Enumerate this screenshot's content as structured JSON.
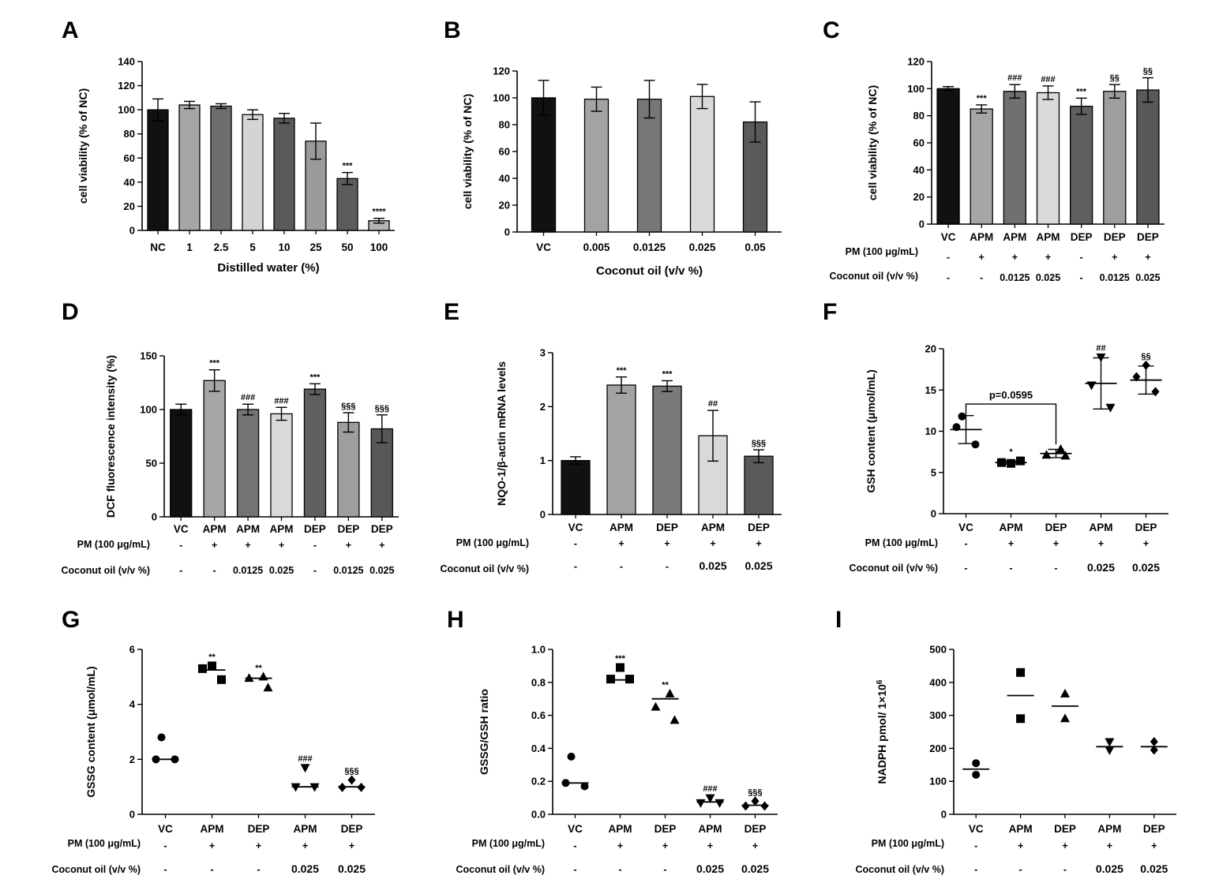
{
  "chart_data": [
    {
      "panel": "A",
      "type": "bar",
      "ylabel": "cell viability (% of NC)",
      "xlabel": "Distilled water (%)",
      "ylim": [
        0,
        140
      ],
      "yticks": [
        0,
        20,
        40,
        60,
        80,
        100,
        120,
        140
      ],
      "categories": [
        "NC",
        "1",
        "2.5",
        "5",
        "10",
        "25",
        "50",
        "100"
      ],
      "values": [
        100,
        104,
        103,
        96,
        93,
        74,
        43,
        8
      ],
      "errors": [
        9,
        3,
        2,
        4,
        4,
        15,
        5,
        2
      ],
      "colors": [
        "#111111",
        "#a6a6a6",
        "#6e6e6e",
        "#d4d4d4",
        "#5a5a5a",
        "#9a9a9a",
        "#5c5c5c",
        "#b5b5b5"
      ],
      "annotations": [
        "",
        "",
        "",
        "",
        "",
        "",
        "***",
        "****"
      ],
      "conditions": []
    },
    {
      "panel": "B",
      "type": "bar",
      "ylabel": "cell viability (% of NC)",
      "xlabel": "Coconut oil (v/v %)",
      "ylim": [
        0,
        120
      ],
      "yticks": [
        0,
        20,
        40,
        60,
        80,
        100,
        120
      ],
      "categories": [
        "VC",
        "0.005",
        "0.0125",
        "0.025",
        "0.05"
      ],
      "values": [
        100,
        99,
        99,
        101,
        82
      ],
      "errors": [
        13,
        9,
        14,
        9,
        15
      ],
      "colors": [
        "#111111",
        "#a3a3a3",
        "#777777",
        "#d9d9d9",
        "#5a5a5a"
      ],
      "annotations": [
        "",
        "",
        "",
        "",
        ""
      ],
      "conditions": []
    },
    {
      "panel": "C",
      "type": "bar",
      "ylabel": "cell viability (% of NC)",
      "xlabel": "",
      "ylim": [
        0,
        120
      ],
      "yticks": [
        0,
        20,
        40,
        60,
        80,
        100,
        120
      ],
      "categories": [
        "VC",
        "APM",
        "APM",
        "APM",
        "DEP",
        "DEP",
        "DEP"
      ],
      "values": [
        100,
        85,
        98,
        97,
        87,
        98,
        99
      ],
      "errors": [
        1.5,
        3,
        5,
        5,
        6,
        5,
        9
      ],
      "colors": [
        "#111111",
        "#a6a6a6",
        "#707070",
        "#d9d9d9",
        "#5f5f5f",
        "#9e9e9e",
        "#585858"
      ],
      "annotations": [
        "",
        "***",
        "###",
        "###",
        "***",
        "§§",
        "§§"
      ],
      "conditions": [
        {
          "label": "PM (100 μg/mL)",
          "values": [
            "-",
            "+",
            "+",
            "+",
            "-",
            "+",
            "+"
          ]
        },
        {
          "label": "Coconut oil (v/v %)",
          "values": [
            "-",
            "-",
            "0.0125",
            "0.025",
            "-",
            "0.0125",
            "0.025"
          ]
        }
      ]
    },
    {
      "panel": "D",
      "type": "bar",
      "ylabel": "DCF fluorescence intensity (%)",
      "xlabel": "",
      "ylim": [
        0,
        150
      ],
      "yticks": [
        0,
        50,
        100,
        150
      ],
      "categories": [
        "VC",
        "APM",
        "APM",
        "APM",
        "DEP",
        "DEP",
        "DEP"
      ],
      "values": [
        100,
        127,
        100,
        96,
        119,
        88,
        82
      ],
      "errors": [
        5,
        10,
        5,
        6,
        5,
        9,
        13
      ],
      "colors": [
        "#111111",
        "#a6a6a6",
        "#737373",
        "#d9d9d9",
        "#5f5f5f",
        "#9e9e9e",
        "#585858"
      ],
      "annotations": [
        "",
        "***",
        "###",
        "###",
        "***",
        "§§§",
        "§§§"
      ],
      "conditions": [
        {
          "label": "PM (100 μg/mL)",
          "values": [
            "-",
            "+",
            "+",
            "+",
            "-",
            "+",
            "+"
          ]
        },
        {
          "label": "Coconut oil (v/v %)",
          "values": [
            "-",
            "-",
            "0.0125",
            "0.025",
            "-",
            "0.0125",
            "0.025"
          ]
        }
      ]
    },
    {
      "panel": "E",
      "type": "bar",
      "ylabel": "NQO-1/β-actin mRNA levels",
      "xlabel": "",
      "ylim": [
        0,
        3
      ],
      "yticks": [
        0,
        1,
        2,
        3
      ],
      "categories": [
        "VC",
        "APM",
        "DEP",
        "APM",
        "DEP"
      ],
      "values": [
        1.0,
        2.4,
        2.38,
        1.46,
        1.08
      ],
      "errors": [
        0.07,
        0.15,
        0.1,
        0.47,
        0.12
      ],
      "colors": [
        "#111111",
        "#a3a3a3",
        "#7a7a7a",
        "#d9d9d9",
        "#5a5a5a"
      ],
      "annotations": [
        "",
        "***",
        "***",
        "##",
        "§§§"
      ],
      "conditions": [
        {
          "label": "PM (100 μg/mL)",
          "values": [
            "-",
            "+",
            "+",
            "+",
            "+"
          ]
        },
        {
          "label": "Coconut oil (v/v %)",
          "values": [
            "-",
            "-",
            "-",
            "0.025",
            "0.025"
          ]
        }
      ]
    },
    {
      "panel": "F",
      "type": "scatter",
      "ylabel": "GSH content (μmol/mL)",
      "xlabel": "",
      "ylim": [
        0,
        20
      ],
      "yticks": [
        0,
        5,
        10,
        15,
        20
      ],
      "categories": [
        "VC",
        "APM",
        "DEP",
        "APM",
        "DEP"
      ],
      "markers": [
        "circle",
        "square",
        "triangle",
        "triangle-down",
        "diamond"
      ],
      "points": [
        [
          11.8,
          10.5,
          8.4
        ],
        [
          6.1,
          6.2,
          6.4
        ],
        [
          7.8,
          7.1,
          7.0
        ],
        [
          19,
          15.6,
          12.9
        ],
        [
          18,
          16.6,
          14.8
        ]
      ],
      "means": [
        10.2,
        6.2,
        7.3,
        15.8,
        16.2
      ],
      "sd": [
        1.7,
        0.2,
        0.5,
        3.1,
        1.7
      ],
      "annotations": [
        "",
        "*",
        "",
        "##",
        "§§"
      ],
      "bracket": {
        "from": 0,
        "to": 2,
        "label": "p=0.0595"
      },
      "conditions": [
        {
          "label": "PM (100 μg/mL)",
          "values": [
            "-",
            "+",
            "+",
            "+",
            "+"
          ]
        },
        {
          "label": "Coconut oil (v/v %)",
          "values": [
            "-",
            "-",
            "-",
            "0.025",
            "0.025"
          ]
        }
      ]
    },
    {
      "panel": "G",
      "type": "scatter",
      "ylabel": "GSSG content (μmol/mL)",
      "xlabel": "",
      "ylim": [
        0,
        6
      ],
      "yticks": [
        0,
        2,
        4,
        6
      ],
      "categories": [
        "VC",
        "APM",
        "DEP",
        "APM",
        "DEP"
      ],
      "markers": [
        "circle",
        "square",
        "triangle",
        "triangle-down",
        "diamond"
      ],
      "points": [
        [
          2.8,
          2.0,
          2.0
        ],
        [
          5.4,
          5.3,
          4.9
        ],
        [
          5.0,
          4.95,
          4.6
        ],
        [
          1.7,
          1.0,
          1.0
        ],
        [
          1.25,
          0.98,
          0.98
        ]
      ],
      "means": [
        2.0,
        5.25,
        4.95,
        1.0,
        1.0
      ],
      "annotations": [
        "",
        "**",
        "**",
        "###",
        "§§§"
      ],
      "conditions": [
        {
          "label": "PM (100 μg/mL)",
          "values": [
            "-",
            "+",
            "+",
            "+",
            "+"
          ]
        },
        {
          "label": "Coconut oil (v/v %)",
          "values": [
            "-",
            "-",
            "-",
            "0.025",
            "0.025"
          ]
        }
      ]
    },
    {
      "panel": "H",
      "type": "scatter",
      "ylabel": "GSSG/GSH ratio",
      "xlabel": "",
      "ylim": [
        0,
        1.0
      ],
      "yticks": [
        "0.0",
        "0.2",
        "0.4",
        "0.6",
        "0.8",
        "1.0"
      ],
      "categories": [
        "VC",
        "APM",
        "DEP",
        "APM",
        "DEP"
      ],
      "markers": [
        "circle",
        "square",
        "triangle",
        "triangle-down",
        "diamond"
      ],
      "points": [
        [
          0.35,
          0.19,
          0.17
        ],
        [
          0.89,
          0.82,
          0.82
        ],
        [
          0.73,
          0.65,
          0.57
        ],
        [
          0.1,
          0.07,
          0.07
        ],
        [
          0.08,
          0.05,
          0.05
        ]
      ],
      "means": [
        0.19,
        0.815,
        0.7,
        0.075,
        0.055
      ],
      "annotations": [
        "",
        "***",
        "**",
        "###",
        "§§§"
      ],
      "conditions": [
        {
          "label": "PM (100 μg/mL)",
          "values": [
            "-",
            "+",
            "+",
            "+",
            "+"
          ]
        },
        {
          "label": "Coconut oil (v/v %)",
          "values": [
            "-",
            "-",
            "-",
            "0.025",
            "0.025"
          ]
        }
      ]
    },
    {
      "panel": "I",
      "type": "scatter",
      "ylabel": "NADPH pmol/ 1×10",
      "ylabel_sup": "6",
      "xlabel": "",
      "ylim": [
        0,
        500
      ],
      "yticks": [
        0,
        100,
        200,
        300,
        400,
        500
      ],
      "categories": [
        "VC",
        "APM",
        "DEP",
        "APM",
        "DEP"
      ],
      "markers": [
        "circle",
        "square",
        "triangle",
        "triangle-down",
        "diamond"
      ],
      "points": [
        [
          155,
          120
        ],
        [
          430,
          290
        ],
        [
          365,
          290
        ],
        [
          220,
          195
        ],
        [
          220,
          195
        ]
      ],
      "means": [
        137,
        360,
        328,
        205,
        205
      ],
      "annotations": [
        "",
        "",
        "",
        "",
        ""
      ],
      "conditions": [
        {
          "label": "PM (100 μg/mL)",
          "values": [
            "-",
            "+",
            "+",
            "+",
            "+"
          ]
        },
        {
          "label": "Coconut oil (v/v %)",
          "values": [
            "-",
            "-",
            "-",
            "0.025",
            "0.025"
          ]
        }
      ]
    }
  ]
}
